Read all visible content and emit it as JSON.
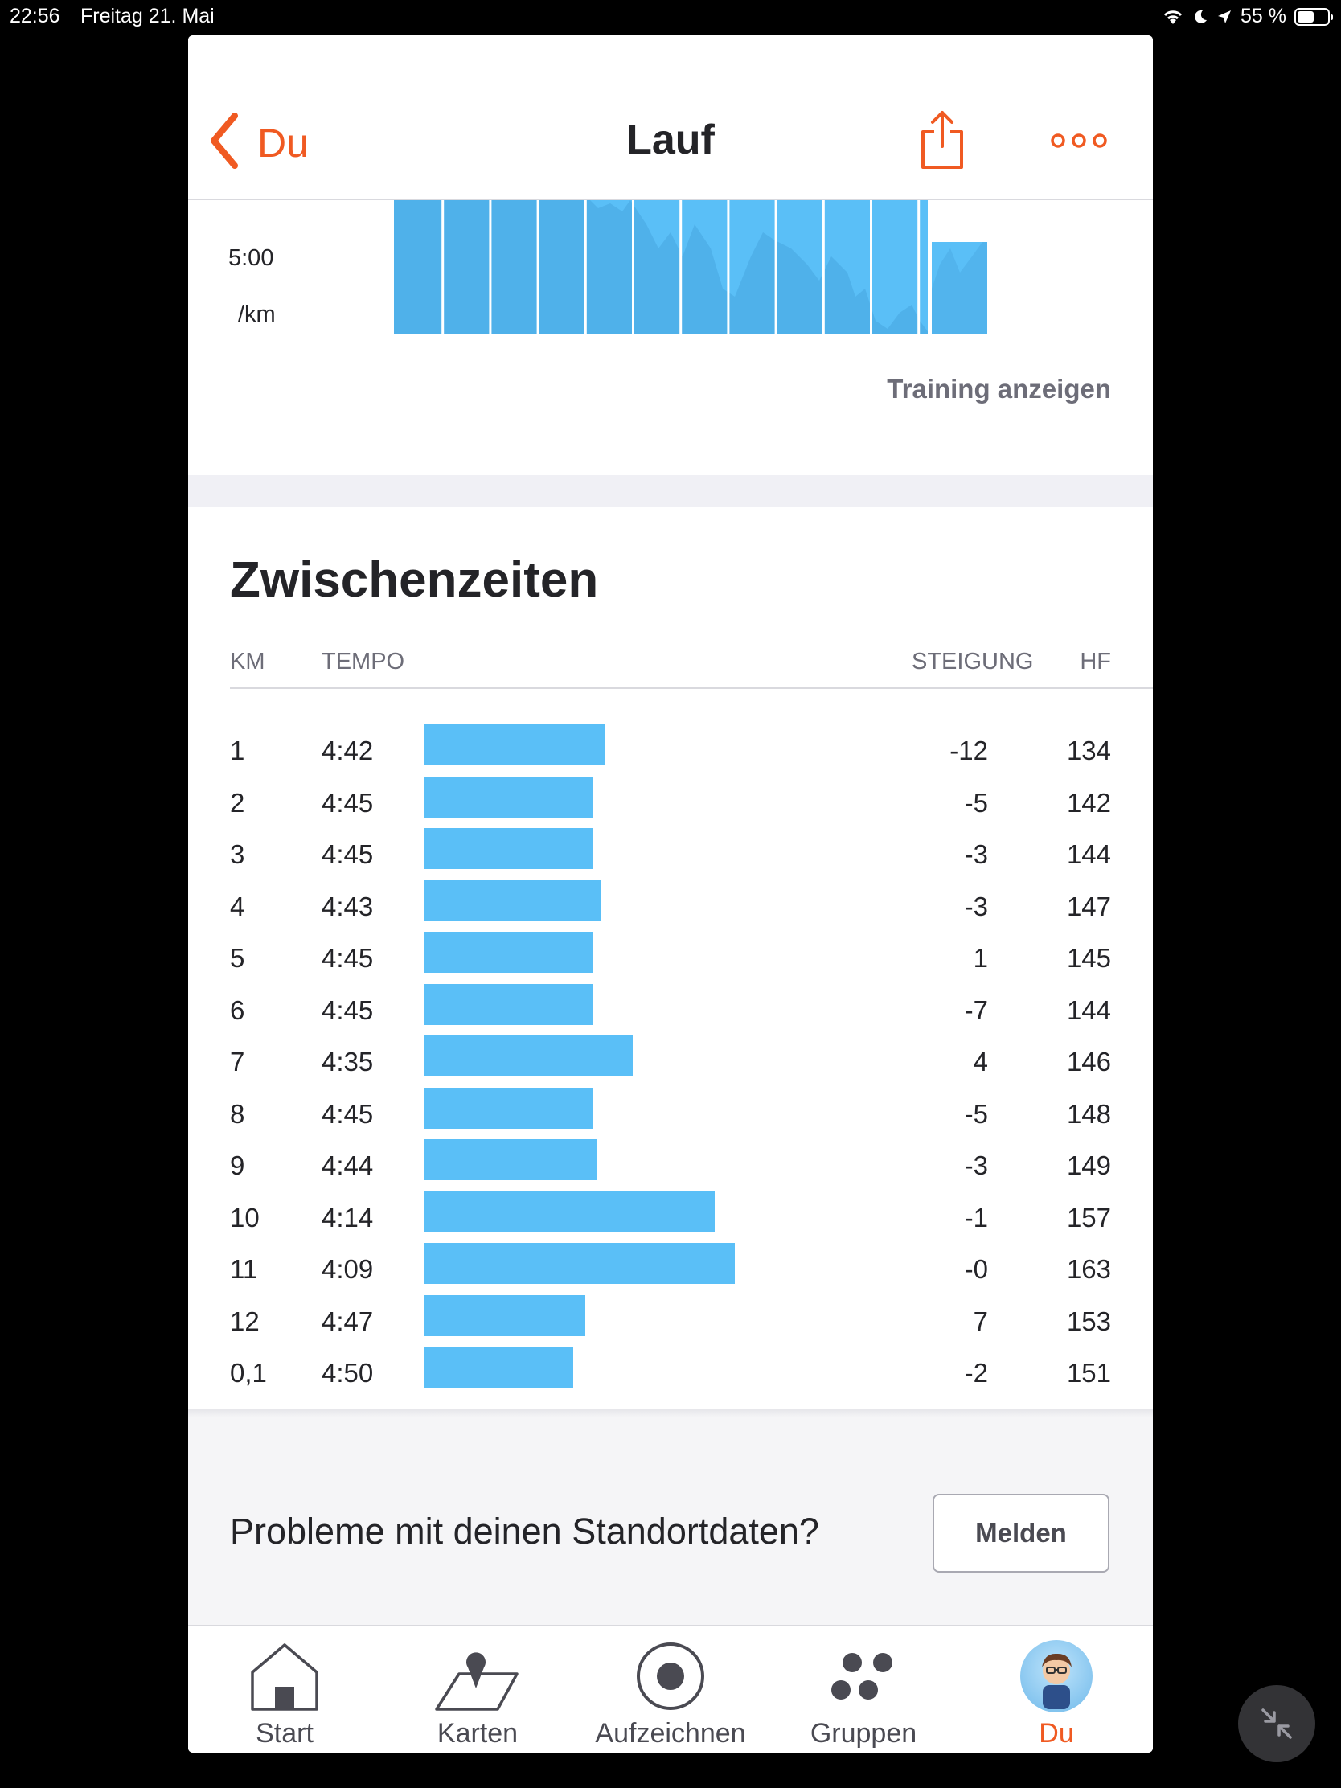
{
  "status_bar": {
    "time": "22:56",
    "date": "Freitag 21. Mai",
    "battery": "55 %",
    "battery_level": 0.55
  },
  "nav": {
    "back_label": "Du",
    "title": "Lauf",
    "icons": [
      "chevron-left-icon",
      "share-icon",
      "more-icon"
    ]
  },
  "pace_chart": {
    "tick_pace": "5:00",
    "tick_unit": "/km",
    "link": "Training anzeigen"
  },
  "splits": {
    "title": "Zwischenzeiten",
    "headers": {
      "km": "KM",
      "tempo": "TEMPO",
      "steigung": "STEIGUNG",
      "hf": "HF"
    },
    "rows": [
      {
        "km": "1",
        "tempo": "4:42",
        "steigung": "-12",
        "hf": "134"
      },
      {
        "km": "2",
        "tempo": "4:45",
        "steigung": "-5",
        "hf": "142"
      },
      {
        "km": "3",
        "tempo": "4:45",
        "steigung": "-3",
        "hf": "144"
      },
      {
        "km": "4",
        "tempo": "4:43",
        "steigung": "-3",
        "hf": "147"
      },
      {
        "km": "5",
        "tempo": "4:45",
        "steigung": "1",
        "hf": "145"
      },
      {
        "km": "6",
        "tempo": "4:45",
        "steigung": "-7",
        "hf": "144"
      },
      {
        "km": "7",
        "tempo": "4:35",
        "steigung": "4",
        "hf": "146"
      },
      {
        "km": "8",
        "tempo": "4:45",
        "steigung": "-5",
        "hf": "148"
      },
      {
        "km": "9",
        "tempo": "4:44",
        "steigung": "-3",
        "hf": "149"
      },
      {
        "km": "10",
        "tempo": "4:14",
        "steigung": "-1",
        "hf": "157"
      },
      {
        "km": "11",
        "tempo": "4:09",
        "steigung": "-0",
        "hf": "163"
      },
      {
        "km": "12",
        "tempo": "4:47",
        "steigung": "7",
        "hf": "153"
      },
      {
        "km": "0,1",
        "tempo": "4:50",
        "steigung": "-2",
        "hf": "151"
      }
    ]
  },
  "report": {
    "text": "Probleme mit deinen Standortdaten?",
    "button": "Melden"
  },
  "tabbar": {
    "tabs": [
      {
        "label": "Start",
        "icon": "home-icon"
      },
      {
        "label": "Karten",
        "icon": "map-icon"
      },
      {
        "label": "Aufzeichnen",
        "icon": "record-icon"
      },
      {
        "label": "Gruppen",
        "icon": "groups-icon"
      },
      {
        "label": "Du",
        "icon": "avatar-icon"
      }
    ],
    "active": "Du"
  },
  "colors": {
    "accent": "#f05a22",
    "bar": "#5abff7",
    "chart_dark": "#4aa9e3"
  }
}
